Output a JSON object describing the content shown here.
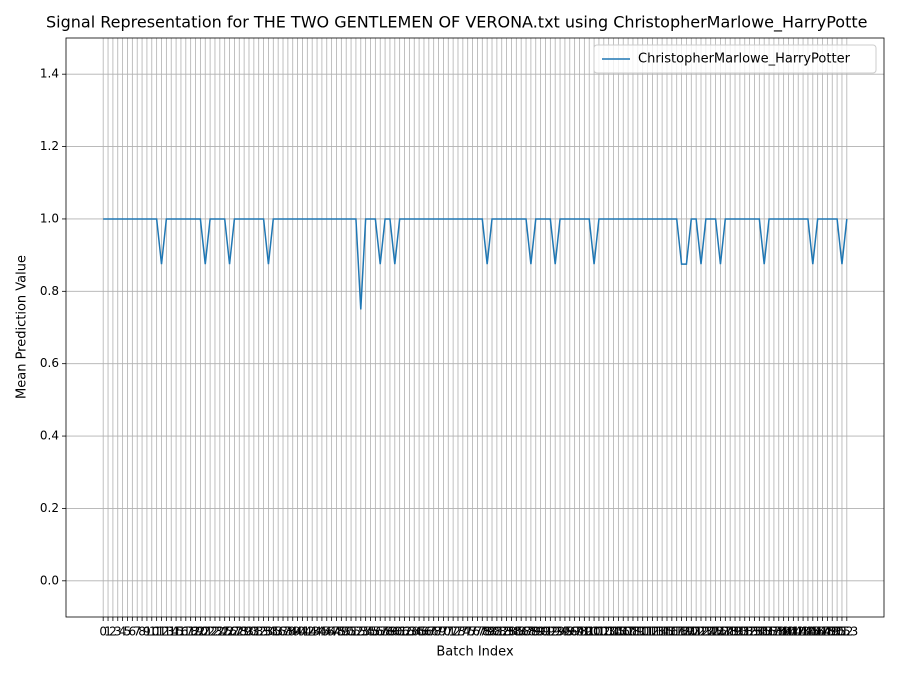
{
  "chart_data": {
    "type": "line",
    "title": "Signal Representation for THE TWO GENTLEMEN OF VERONA.txt using ChristopherMarlowe_HarryPotte",
    "x_label": "Batch Index",
    "y_label": "Mean Prediction Value",
    "x": [
      0,
      1,
      2,
      3,
      4,
      5,
      6,
      7,
      8,
      9,
      10,
      11,
      12,
      13,
      14,
      15,
      16,
      17,
      18,
      19,
      20,
      21,
      22,
      23,
      24,
      25,
      26,
      27,
      28,
      29,
      30,
      31,
      32,
      33,
      34,
      35,
      36,
      37,
      38,
      39,
      40,
      41,
      42,
      43,
      44,
      45,
      46,
      47,
      48,
      49,
      50,
      51,
      52,
      53,
      54,
      55,
      56,
      57,
      58,
      59,
      60,
      61,
      62,
      63,
      64,
      65,
      66,
      67,
      68,
      69,
      70,
      71,
      72,
      73,
      74,
      75,
      76,
      77,
      78,
      79,
      80,
      81,
      82,
      83,
      84,
      85,
      86,
      87,
      88,
      89,
      90,
      91,
      92,
      93,
      94,
      95,
      96,
      97,
      98,
      99,
      100,
      101,
      102,
      103,
      104,
      105,
      106,
      107,
      108,
      109,
      110,
      111,
      112,
      113,
      114,
      115,
      116,
      117,
      118,
      119,
      120,
      121,
      122,
      123,
      124,
      125,
      126,
      127,
      128,
      129,
      130,
      131,
      132,
      133,
      134,
      135,
      136,
      137,
      138,
      139,
      140,
      141,
      142,
      143,
      144,
      145,
      146,
      147,
      148,
      149,
      150,
      151,
      152,
      153
    ],
    "series": [
      {
        "name": "ChristopherMarlowe_HarryPotter",
        "color": "#1f77b4",
        "values": [
          1,
          1,
          1,
          1,
          1,
          1,
          1,
          1,
          1,
          1,
          1,
          1,
          0.875,
          1,
          1,
          1,
          1,
          1,
          1,
          1,
          1,
          0.875,
          1,
          1,
          1,
          1,
          0.875,
          1,
          1,
          1,
          1,
          1,
          1,
          1,
          0.875,
          1,
          1,
          1,
          1,
          1,
          1,
          1,
          1,
          1,
          1,
          1,
          1,
          1,
          1,
          1,
          1,
          1,
          1,
          0.75,
          1,
          1,
          1,
          0.875,
          1,
          1,
          0.875,
          1,
          1,
          1,
          1,
          1,
          1,
          1,
          1,
          1,
          1,
          1,
          1,
          1,
          1,
          1,
          1,
          1,
          1,
          0.875,
          1,
          1,
          1,
          1,
          1,
          1,
          1,
          1,
          0.875,
          1,
          1,
          1,
          1,
          0.875,
          1,
          1,
          1,
          1,
          1,
          1,
          1,
          0.875,
          1,
          1,
          1,
          1,
          1,
          1,
          1,
          1,
          1,
          1,
          1,
          1,
          1,
          1,
          1,
          1,
          1,
          0.875,
          0.875,
          1,
          1,
          0.875,
          1,
          1,
          1,
          0.875,
          1,
          1,
          1,
          1,
          1,
          1,
          1,
          1,
          0.875,
          1,
          1,
          1,
          1,
          1,
          1,
          1,
          1,
          1,
          0.875,
          1,
          1,
          1,
          1,
          1,
          0.875,
          1
        ]
      }
    ],
    "xlim": [
      -7.65,
      160.65
    ],
    "ylim": [
      -0.1,
      1.5
    ],
    "xticks": [
      0,
      1,
      2,
      3,
      4,
      5,
      6,
      7,
      8,
      9,
      10,
      11,
      12,
      13,
      14,
      15,
      16,
      17,
      18,
      19,
      20,
      21,
      22,
      23,
      24,
      25,
      26,
      27,
      28,
      29,
      30,
      31,
      32,
      33,
      34,
      35,
      36,
      37,
      38,
      39,
      40,
      41,
      42,
      43,
      44,
      45,
      46,
      47,
      48,
      49,
      50,
      51,
      52,
      53,
      54,
      55,
      56,
      57,
      58,
      59,
      60,
      61,
      62,
      63,
      64,
      65,
      66,
      67,
      68,
      69,
      70,
      71,
      72,
      73,
      74,
      75,
      76,
      77,
      78,
      79,
      80,
      81,
      82,
      83,
      84,
      85,
      86,
      87,
      88,
      89,
      90,
      91,
      92,
      93,
      94,
      95,
      96,
      97,
      98,
      99,
      100,
      101,
      102,
      103,
      104,
      105,
      106,
      107,
      108,
      109,
      110,
      111,
      112,
      113,
      114,
      115,
      116,
      117,
      118,
      119,
      120,
      121,
      122,
      123,
      124,
      125,
      126,
      127,
      128,
      129,
      130,
      131,
      132,
      133,
      134,
      135,
      136,
      137,
      138,
      139,
      140,
      141,
      142,
      143,
      144,
      145,
      146,
      147,
      148,
      149,
      150,
      151,
      152,
      153
    ],
    "yticks": [
      {
        "value": 0,
        "label": "0.0"
      },
      0.2,
      0.4,
      0.6,
      0.8,
      {
        "value": 1,
        "label": "1.0"
      },
      1.2,
      1.4
    ],
    "grid": true,
    "legend": "upper right"
  }
}
